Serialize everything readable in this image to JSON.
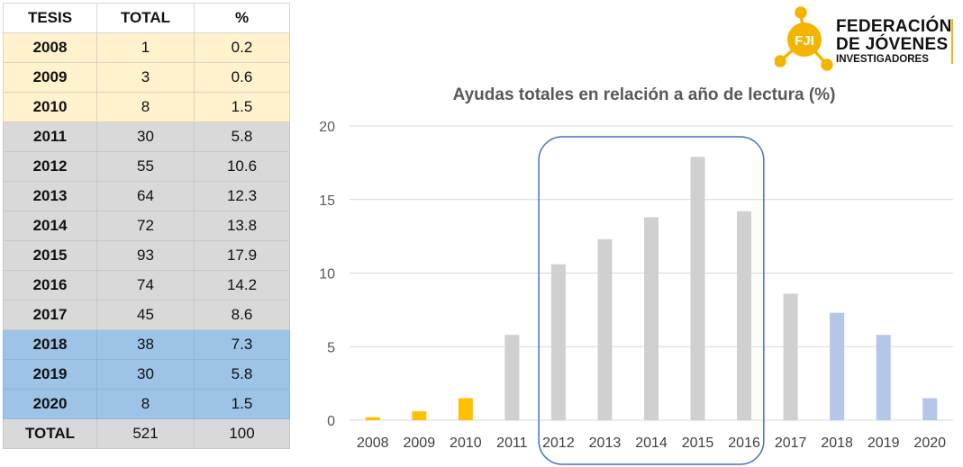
{
  "table": {
    "headers": [
      "TESIS",
      "TOTAL",
      "%"
    ],
    "rows": [
      {
        "year": "2008",
        "total": "1",
        "pct": "0.2",
        "group": "early"
      },
      {
        "year": "2009",
        "total": "3",
        "pct": "0.6",
        "group": "early"
      },
      {
        "year": "2010",
        "total": "8",
        "pct": "1.5",
        "group": "early"
      },
      {
        "year": "2011",
        "total": "30",
        "pct": "5.8",
        "group": "mid"
      },
      {
        "year": "2012",
        "total": "55",
        "pct": "10.6",
        "group": "mid"
      },
      {
        "year": "2013",
        "total": "64",
        "pct": "12.3",
        "group": "mid"
      },
      {
        "year": "2014",
        "total": "72",
        "pct": "13.8",
        "group": "mid"
      },
      {
        "year": "2015",
        "total": "93",
        "pct": "17.9",
        "group": "mid"
      },
      {
        "year": "2016",
        "total": "74",
        "pct": "14.2",
        "group": "mid"
      },
      {
        "year": "2017",
        "total": "45",
        "pct": "8.6",
        "group": "mid"
      },
      {
        "year": "2018",
        "total": "38",
        "pct": "7.3",
        "group": "late"
      },
      {
        "year": "2019",
        "total": "30",
        "pct": "5.8",
        "group": "late"
      },
      {
        "year": "2020",
        "total": "8",
        "pct": "1.5",
        "group": "late"
      }
    ],
    "total_row": {
      "label": "TOTAL",
      "total": "521",
      "pct": "100"
    }
  },
  "logo": {
    "mark": "FJI",
    "line1": "FEDERACIÓN",
    "line2": "DE JÓVENES",
    "line3": "INVESTIGADORES"
  },
  "chart_data": {
    "type": "bar",
    "title": "Ayudas totales en relación a año de lectura (%)",
    "categories": [
      "2008",
      "2009",
      "2010",
      "2011",
      "2012",
      "2013",
      "2014",
      "2015",
      "2016",
      "2017",
      "2018",
      "2019",
      "2020"
    ],
    "values": [
      0.2,
      0.6,
      1.5,
      5.8,
      10.6,
      12.3,
      13.8,
      17.9,
      14.2,
      8.6,
      7.3,
      5.8,
      1.5
    ],
    "bar_colors": [
      "#ffc000",
      "#ffc000",
      "#ffc000",
      "#d0d0d0",
      "#d0d0d0",
      "#d0d0d0",
      "#d0d0d0",
      "#d0d0d0",
      "#d0d0d0",
      "#d0d0d0",
      "#b4c7e7",
      "#b4c7e7",
      "#b4c7e7"
    ],
    "ylim": [
      0,
      20
    ],
    "yticks": [
      0,
      5,
      10,
      15,
      20
    ],
    "grid": true,
    "legend": "none",
    "highlight": {
      "from": "2012",
      "to": "2016",
      "color": "#4472c4"
    }
  }
}
